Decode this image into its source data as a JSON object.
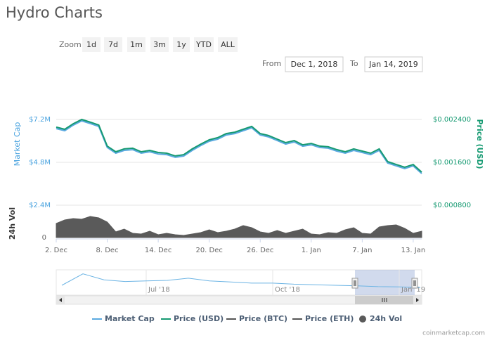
{
  "title": "Hydro Charts",
  "zoom": {
    "label": "Zoom",
    "buttons": [
      "1d",
      "7d",
      "1m",
      "3m",
      "1y",
      "YTD",
      "ALL"
    ]
  },
  "range": {
    "from_label": "From",
    "from": "Dec 1, 2018",
    "to_label": "To",
    "to": "Jan 14, 2019"
  },
  "credit": "coinmarketcap.com",
  "chart_data": [
    {
      "type": "line",
      "categories": [
        "2. Dec",
        null,
        null,
        null,
        null,
        null,
        "8. Dec",
        null,
        null,
        null,
        null,
        null,
        "14. Dec",
        null,
        null,
        null,
        null,
        null,
        "20. Dec",
        null,
        null,
        null,
        null,
        null,
        "26. Dec",
        null,
        null,
        null,
        null,
        null,
        "1. Jan",
        null,
        null,
        null,
        null,
        null,
        "7. Jan",
        null,
        null,
        null,
        null,
        null,
        "13. Jan",
        null
      ],
      "ylabel": "Market Cap",
      "y2label": "Price (USD)",
      "vol_label": "24h Vol",
      "ylim": [
        2400000,
        7200000
      ],
      "yticks": [
        {
          "value": 7200000,
          "label": "$7.2M"
        },
        {
          "value": 4800000,
          "label": "$4.8M"
        },
        {
          "value": 2400000,
          "label": "$2.4M"
        }
      ],
      "y2lim": [
        0.0008,
        0.0024
      ],
      "y2ticks": [
        {
          "value": 0.0024,
          "label": "$0.002400"
        },
        {
          "value": 0.0016,
          "label": "$0.001600"
        },
        {
          "value": 0.0008,
          "label": "$0.000800"
        }
      ],
      "vol_lim": [
        0,
        400000
      ],
      "vol_ticks": [
        0
      ],
      "grid": true,
      "series": [
        {
          "name": "Market Cap",
          "type": "line",
          "axis": "y",
          "color": "#5aa9e0",
          "values": [
            6690000,
            6570000,
            6880000,
            7120000,
            6970000,
            6810000,
            5630000,
            5310000,
            5470000,
            5510000,
            5310000,
            5390000,
            5270000,
            5230000,
            5080000,
            5150000,
            5470000,
            5740000,
            5980000,
            6100000,
            6330000,
            6410000,
            6570000,
            6730000,
            6330000,
            6220000,
            6020000,
            5820000,
            5940000,
            5700000,
            5780000,
            5630000,
            5590000,
            5430000,
            5310000,
            5470000,
            5350000,
            5230000,
            5470000,
            4760000,
            4600000,
            4450000,
            4600000,
            4170000
          ]
        },
        {
          "name": "Price (USD)",
          "type": "line",
          "axis": "y2",
          "color": "#169a72",
          "values": [
            0.002257,
            0.002217,
            0.00232,
            0.0024,
            0.00235,
            0.002297,
            0.001903,
            0.001797,
            0.00185,
            0.001863,
            0.001797,
            0.001823,
            0.001783,
            0.00177,
            0.00172,
            0.001743,
            0.00185,
            0.00194,
            0.00202,
            0.00206,
            0.002137,
            0.002163,
            0.002217,
            0.00227,
            0.002137,
            0.0021,
            0.002033,
            0.001967,
            0.002007,
            0.001927,
            0.001953,
            0.001903,
            0.00189,
            0.001837,
            0.001797,
            0.00185,
            0.00181,
            0.00177,
            0.00185,
            0.001613,
            0.00156,
            0.00151,
            0.00156,
            0.001417
          ]
        },
        {
          "name": "Price (BTC)",
          "type": "line",
          "color": "#555555",
          "visible": false
        },
        {
          "name": "Price (ETH)",
          "type": "line",
          "color": "#555555",
          "visible": false
        },
        {
          "name": "24h Vol",
          "type": "area",
          "axis": "vol",
          "color": "#5a5a5a",
          "values": [
            200000,
            250000,
            270000,
            260000,
            300000,
            280000,
            220000,
            80000,
            120000,
            60000,
            50000,
            90000,
            40000,
            60000,
            40000,
            30000,
            50000,
            70000,
            110000,
            70000,
            90000,
            120000,
            170000,
            140000,
            80000,
            60000,
            100000,
            60000,
            90000,
            120000,
            50000,
            40000,
            70000,
            60000,
            110000,
            140000,
            60000,
            50000,
            150000,
            170000,
            180000,
            130000,
            60000,
            90000
          ]
        }
      ]
    },
    {
      "type": "line",
      "categories": [
        null,
        null,
        null,
        null,
        "Jul '18",
        null,
        null,
        null,
        null,
        null,
        "Oct '18",
        null,
        null,
        null,
        null,
        null,
        "Jan '19",
        null
      ],
      "ylim": [
        0,
        36000000
      ],
      "series": [
        {
          "name": "Market Cap",
          "color": "#6cb4e4",
          "values": [
            9000000,
            30000000,
            19000000,
            16000000,
            17000000,
            18000000,
            22000000,
            17000000,
            15000000,
            13000000,
            13000000,
            11000000,
            10000000,
            9000000,
            8000000,
            6500000,
            6000000,
            5000000
          ]
        }
      ]
    }
  ]
}
